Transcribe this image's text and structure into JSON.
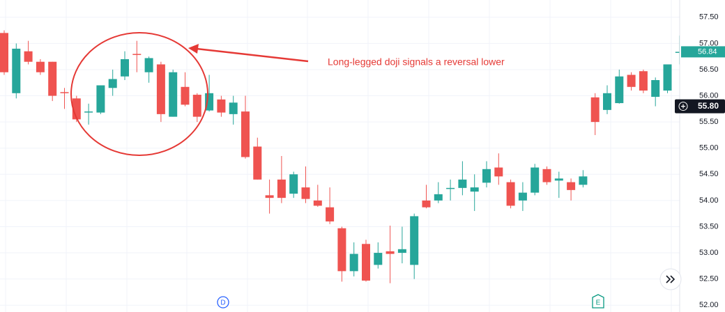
{
  "chart_data": {
    "type": "candlestick",
    "up_color": "#26a69a",
    "down_color": "#ef5350",
    "open": [
      57.2,
      56.05,
      56.85,
      56.65,
      56.65,
      56.07,
      55.95,
      55.7,
      55.68,
      56.15,
      56.37,
      56.8,
      56.45,
      56.6,
      55.6,
      56.17,
      56.02,
      55.72,
      55.93,
      55.65,
      55.7,
      55.03,
      54.1,
      54.4,
      54.13,
      54.25,
      54.0,
      53.87,
      53.47,
      52.65,
      53.17,
      52.77,
      53.03,
      53.0,
      52.77,
      54.0,
      54.0,
      54.22,
      54.24,
      54.17,
      54.34,
      54.63,
      54.35,
      54.0,
      54.15,
      54.6,
      54.38,
      54.35,
      54.3,
      55.97,
      55.73,
      55.86,
      56.4,
      56.47,
      55.98,
      56.1,
      56.84
    ],
    "high": [
      57.25,
      57.0,
      57.05,
      56.7,
      56.65,
      56.15,
      56.0,
      55.85,
      56.2,
      56.5,
      56.85,
      57.05,
      56.75,
      56.65,
      56.5,
      56.45,
      56.05,
      56.4,
      56.0,
      56.0,
      56.0,
      55.2,
      54.4,
      54.85,
      54.55,
      54.65,
      54.3,
      54.25,
      53.5,
      53.2,
      53.25,
      53.2,
      53.52,
      53.5,
      53.75,
      54.3,
      54.35,
      54.4,
      54.75,
      54.5,
      54.75,
      54.9,
      54.4,
      54.35,
      54.7,
      54.65,
      54.55,
      54.42,
      54.58,
      56.05,
      56.2,
      56.5,
      56.45,
      56.5,
      56.35,
      56.6,
      57.15
    ],
    "low": [
      56.4,
      55.95,
      56.6,
      56.4,
      55.9,
      55.75,
      55.5,
      55.45,
      55.65,
      56.0,
      56.3,
      56.45,
      56.25,
      55.5,
      55.6,
      55.8,
      55.5,
      55.7,
      55.6,
      55.45,
      54.8,
      54.4,
      53.75,
      53.95,
      54.05,
      53.95,
      53.88,
      53.55,
      52.45,
      52.55,
      52.45,
      52.7,
      52.42,
      52.8,
      52.5,
      53.85,
      53.95,
      54.0,
      54.1,
      53.8,
      54.25,
      54.3,
      53.85,
      53.8,
      54.1,
      54.3,
      54.05,
      54.0,
      54.25,
      55.25,
      55.65,
      55.85,
      56.1,
      56.05,
      55.8,
      56.05,
      56.6
    ],
    "close": [
      56.45,
      56.9,
      56.65,
      56.45,
      56.0,
      56.05,
      55.55,
      55.7,
      56.2,
      56.32,
      56.7,
      56.78,
      56.72,
      55.65,
      56.45,
      55.83,
      55.6,
      56.05,
      55.68,
      55.87,
      54.83,
      54.4,
      54.05,
      54.05,
      54.5,
      54.03,
      53.9,
      53.6,
      52.65,
      52.98,
      52.47,
      53.0,
      52.98,
      53.07,
      53.7,
      53.87,
      54.12,
      54.24,
      54.4,
      54.25,
      54.6,
      54.46,
      53.9,
      54.15,
      54.63,
      54.35,
      54.42,
      54.2,
      54.46,
      55.5,
      56.05,
      56.37,
      56.17,
      56.1,
      56.3,
      56.6,
      56.84
    ],
    "ylim": [
      51.87,
      57.83
    ],
    "yticks": [
      {
        "value": 52,
        "label": "52.00"
      },
      {
        "value": 52.5,
        "label": "52.50"
      },
      {
        "value": 53,
        "label": "53.00"
      },
      {
        "value": 53.5,
        "label": "53.50"
      },
      {
        "value": 54,
        "label": "54.00"
      },
      {
        "value": 54.5,
        "label": "54.50"
      },
      {
        "value": 55,
        "label": "55.00"
      },
      {
        "value": 55.5,
        "label": "55.50"
      },
      {
        "value": 56,
        "label": "56.00"
      },
      {
        "value": 56.5,
        "label": "56.50"
      },
      {
        "value": 57,
        "label": "57.00"
      },
      {
        "value": 57.5,
        "label": "57.50"
      }
    ],
    "last_price": 56.84,
    "crosshair_price": {
      "value": 55.8,
      "label": "55.80"
    },
    "annotation": "Long-legged doji signals a reversal lower",
    "events": [
      "D",
      "E"
    ],
    "grid": true
  }
}
